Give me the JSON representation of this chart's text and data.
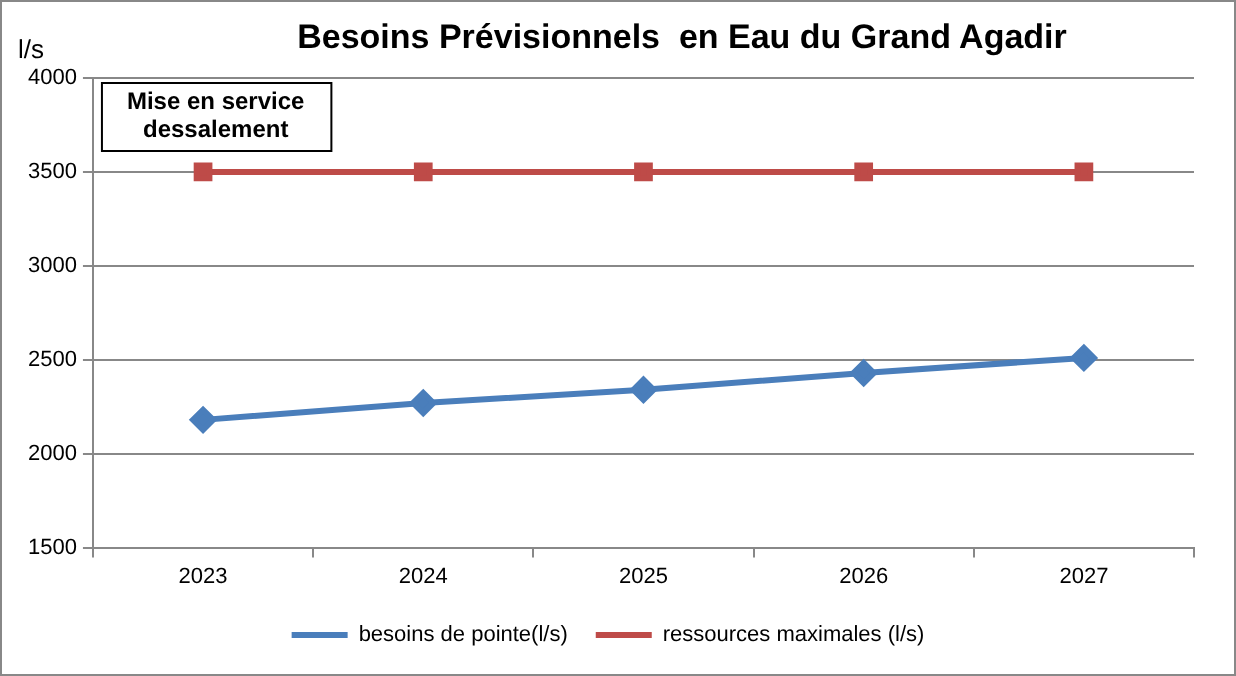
{
  "chart_data": {
    "type": "line",
    "title": "Besoins Prévisionnels  en Eau du Grand Agadir",
    "ylabel": "l/s",
    "categories": [
      "2023",
      "2024",
      "2025",
      "2026",
      "2027"
    ],
    "series": [
      {
        "name": "besoins de pointe(l/s)",
        "color": "#4a7ebb",
        "values": [
          2180,
          2270,
          2340,
          2430,
          2510
        ],
        "marker": "diamond"
      },
      {
        "name": "ressources maximales (l/s)",
        "color": "#be4b48",
        "values": [
          3500,
          3500,
          3500,
          3500,
          3500
        ],
        "marker": "square"
      }
    ],
    "ylim": [
      1500,
      4000
    ],
    "yticks": [
      1500,
      2000,
      2500,
      3000,
      3500,
      4000
    ],
    "grid": "y",
    "legend": "bottom",
    "annotations": [
      "Mise en service\ndessalement"
    ]
  }
}
